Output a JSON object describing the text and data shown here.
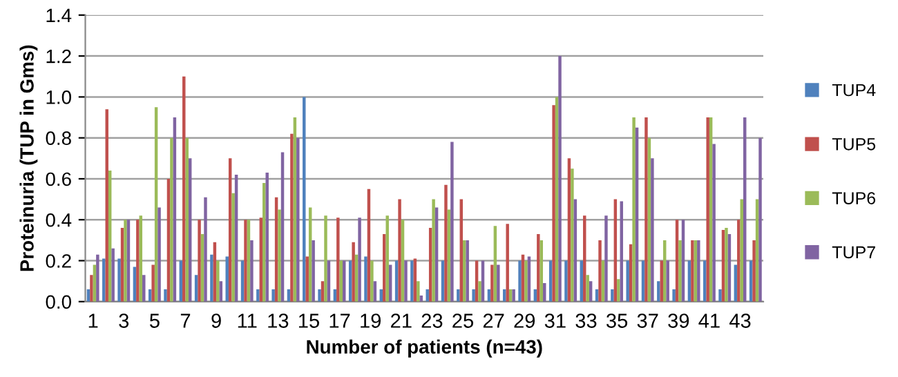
{
  "chart_data": {
    "type": "bar",
    "xlabel": "Number of patients (n=43)",
    "ylabel": "Proteinuria (TUP in Gms)",
    "categories": [
      "1",
      null,
      "3",
      null,
      "5",
      null,
      "7",
      null,
      "9",
      null,
      "11",
      null,
      "13",
      null,
      "15",
      null,
      "17",
      null,
      "19",
      null,
      "21",
      null,
      "23",
      null,
      "25",
      null,
      "27",
      null,
      "29",
      null,
      "31",
      null,
      "33",
      null,
      "35",
      null,
      "37",
      null,
      "39",
      null,
      "41",
      null,
      "43",
      null
    ],
    "series": [
      {
        "name": "TUP4",
        "color": "#4f81bd",
        "values": [
          0.06,
          0.21,
          0.21,
          0.17,
          0.06,
          0.06,
          0.2,
          0.13,
          0.23,
          0.22,
          0.2,
          0.06,
          0.06,
          0.06,
          1.0,
          0.06,
          0.06,
          0.2,
          0.22,
          0.06,
          0.2,
          0.2,
          0.06,
          0.2,
          0.06,
          0.06,
          0.06,
          0.06,
          0.2,
          0.06,
          0.2,
          0.2,
          0.2,
          0.06,
          0.06,
          0.2,
          0.2,
          0.1,
          0.06,
          0.2,
          0.2,
          0.06,
          0.18,
          0.2
        ]
      },
      {
        "name": "TUP5",
        "color": "#c0504d",
        "values": [
          0.13,
          0.94,
          0.36,
          0.4,
          0.18,
          0.6,
          1.1,
          0.4,
          0.29,
          0.7,
          0.4,
          0.41,
          0.51,
          0.82,
          0.22,
          0.1,
          0.41,
          0.29,
          0.55,
          0.33,
          0.5,
          0.21,
          0.36,
          0.57,
          0.5,
          0.2,
          0.18,
          0.38,
          0.23,
          0.33,
          0.96,
          0.7,
          0.42,
          0.3,
          0.5,
          0.28,
          0.9,
          0.2,
          0.4,
          0.3,
          0.9,
          0.35,
          0.4,
          0.3
        ]
      },
      {
        "name": "TUP6",
        "color": "#9bbb59",
        "values": [
          0.18,
          0.64,
          0.4,
          0.42,
          0.95,
          0.8,
          0.8,
          0.33,
          0.2,
          0.53,
          0.4,
          0.58,
          0.45,
          0.9,
          0.46,
          0.42,
          0.2,
          0.23,
          0.2,
          0.42,
          0.4,
          0.1,
          0.5,
          0.45,
          0.3,
          0.1,
          0.37,
          0.06,
          0.2,
          0.3,
          1.0,
          0.65,
          0.13,
          0.2,
          0.11,
          0.9,
          0.8,
          0.3,
          0.3,
          0.3,
          0.9,
          0.36,
          0.5,
          0.5
        ]
      },
      {
        "name": "TUP7",
        "color": "#8064a2",
        "values": [
          0.23,
          0.26,
          0.4,
          0.13,
          0.46,
          0.9,
          0.7,
          0.51,
          0.1,
          0.62,
          0.3,
          0.63,
          0.73,
          0.8,
          0.3,
          0.2,
          0.2,
          0.41,
          0.1,
          0.18,
          0.2,
          0.03,
          0.46,
          0.78,
          0.3,
          0.2,
          0.18,
          0.06,
          0.22,
          0.09,
          1.2,
          0.5,
          0.1,
          0.42,
          0.49,
          0.85,
          0.7,
          0.2,
          0.4,
          0.3,
          0.77,
          0.33,
          0.9,
          0.8
        ]
      }
    ],
    "ylim": [
      0,
      1.4
    ],
    "yticks": [
      {
        "value": 0,
        "label": "0.0"
      },
      {
        "value": 0.2,
        "label": "0.2"
      },
      {
        "value": 0.4,
        "label": "0.4"
      },
      {
        "value": 0.6,
        "label": "0.6"
      },
      {
        "value": 0.8,
        "label": "0.8"
      },
      {
        "value": 1.0,
        "label": "1.0"
      },
      {
        "value": 1.2,
        "label": "1.2"
      },
      {
        "value": 1.4,
        "label": "1.4"
      }
    ],
    "grid": "y",
    "legend": "right"
  }
}
